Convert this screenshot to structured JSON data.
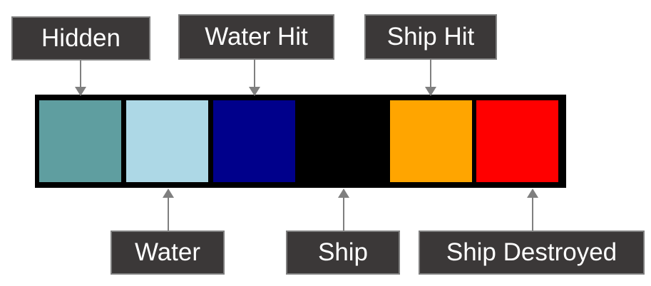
{
  "labels": {
    "hidden": "Hidden",
    "water_hit": "Water Hit",
    "ship_hit": "Ship Hit",
    "water": "Water",
    "ship": "Ship",
    "ship_destroyed": "Ship Destroyed"
  },
  "cells": [
    {
      "state": "hidden",
      "color": "#5f9ea0"
    },
    {
      "state": "water",
      "color": "#add8e6"
    },
    {
      "state": "water-hit",
      "color": "#00008b"
    },
    {
      "state": "ship",
      "color": "#000000"
    },
    {
      "state": "ship-hit",
      "color": "#ffa500"
    },
    {
      "state": "ship-destroyed",
      "color": "#ff0000"
    }
  ],
  "colors": {
    "label_bg": "#3b3838",
    "label_border": "#7f7f7f",
    "label_text": "#ffffff",
    "arrow": "#7f7f7f",
    "strip_bg": "#000000"
  }
}
